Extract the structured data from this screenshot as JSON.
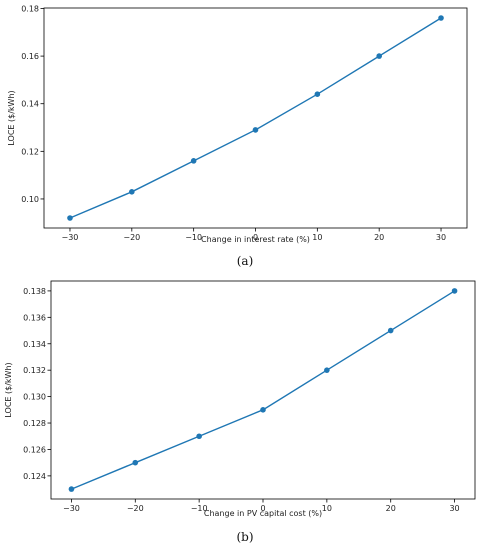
{
  "series_color": "#1f77b4",
  "chart_data": [
    {
      "type": "line",
      "caption": "(a)",
      "title": "",
      "xlabel": "Change in interest rate (%)",
      "ylabel": "LOCE ($/kWh)",
      "x": [
        -30,
        -20,
        -10,
        0,
        10,
        20,
        30
      ],
      "series": [
        {
          "values": [
            0.092,
            0.103,
            0.116,
            0.129,
            0.144,
            0.16,
            0.176
          ]
        }
      ],
      "xticks": [
        -30,
        -20,
        -10,
        0,
        10,
        20,
        30
      ],
      "xtick_labels": [
        "−30",
        "−20",
        "−10",
        "0",
        "10",
        "20",
        "30"
      ],
      "yticks": [
        0.1,
        0.12,
        0.14,
        0.16,
        0.18
      ],
      "ytick_labels": [
        "0.10",
        "0.12",
        "0.14",
        "0.16",
        "0.18"
      ],
      "xlim": [
        -34.2,
        34.2
      ],
      "ylim": [
        0.0878,
        0.1802
      ],
      "grid": false,
      "legend": "none"
    },
    {
      "type": "line",
      "caption": "(b)",
      "title": "",
      "xlabel": "Change in PV capital cost (%)",
      "ylabel": "LOCE ($/kWh)",
      "x": [
        -30,
        -20,
        -10,
        0,
        10,
        20,
        30
      ],
      "series": [
        {
          "values": [
            0.123,
            0.125,
            0.127,
            0.129,
            0.132,
            0.135,
            0.138
          ]
        }
      ],
      "xticks": [
        -30,
        -20,
        -10,
        0,
        10,
        20,
        30
      ],
      "xtick_labels": [
        "−30",
        "−20",
        "−10",
        "0",
        "10",
        "20",
        "30"
      ],
      "yticks": [
        0.124,
        0.126,
        0.128,
        0.13,
        0.132,
        0.134,
        0.136,
        0.138
      ],
      "ytick_labels": [
        "0.124",
        "0.126",
        "0.128",
        "0.130",
        "0.132",
        "0.134",
        "0.136",
        "0.138"
      ],
      "xlim": [
        -33.2,
        33.2
      ],
      "ylim": [
        0.12225,
        0.13875
      ],
      "grid": false,
      "legend": "none"
    }
  ]
}
